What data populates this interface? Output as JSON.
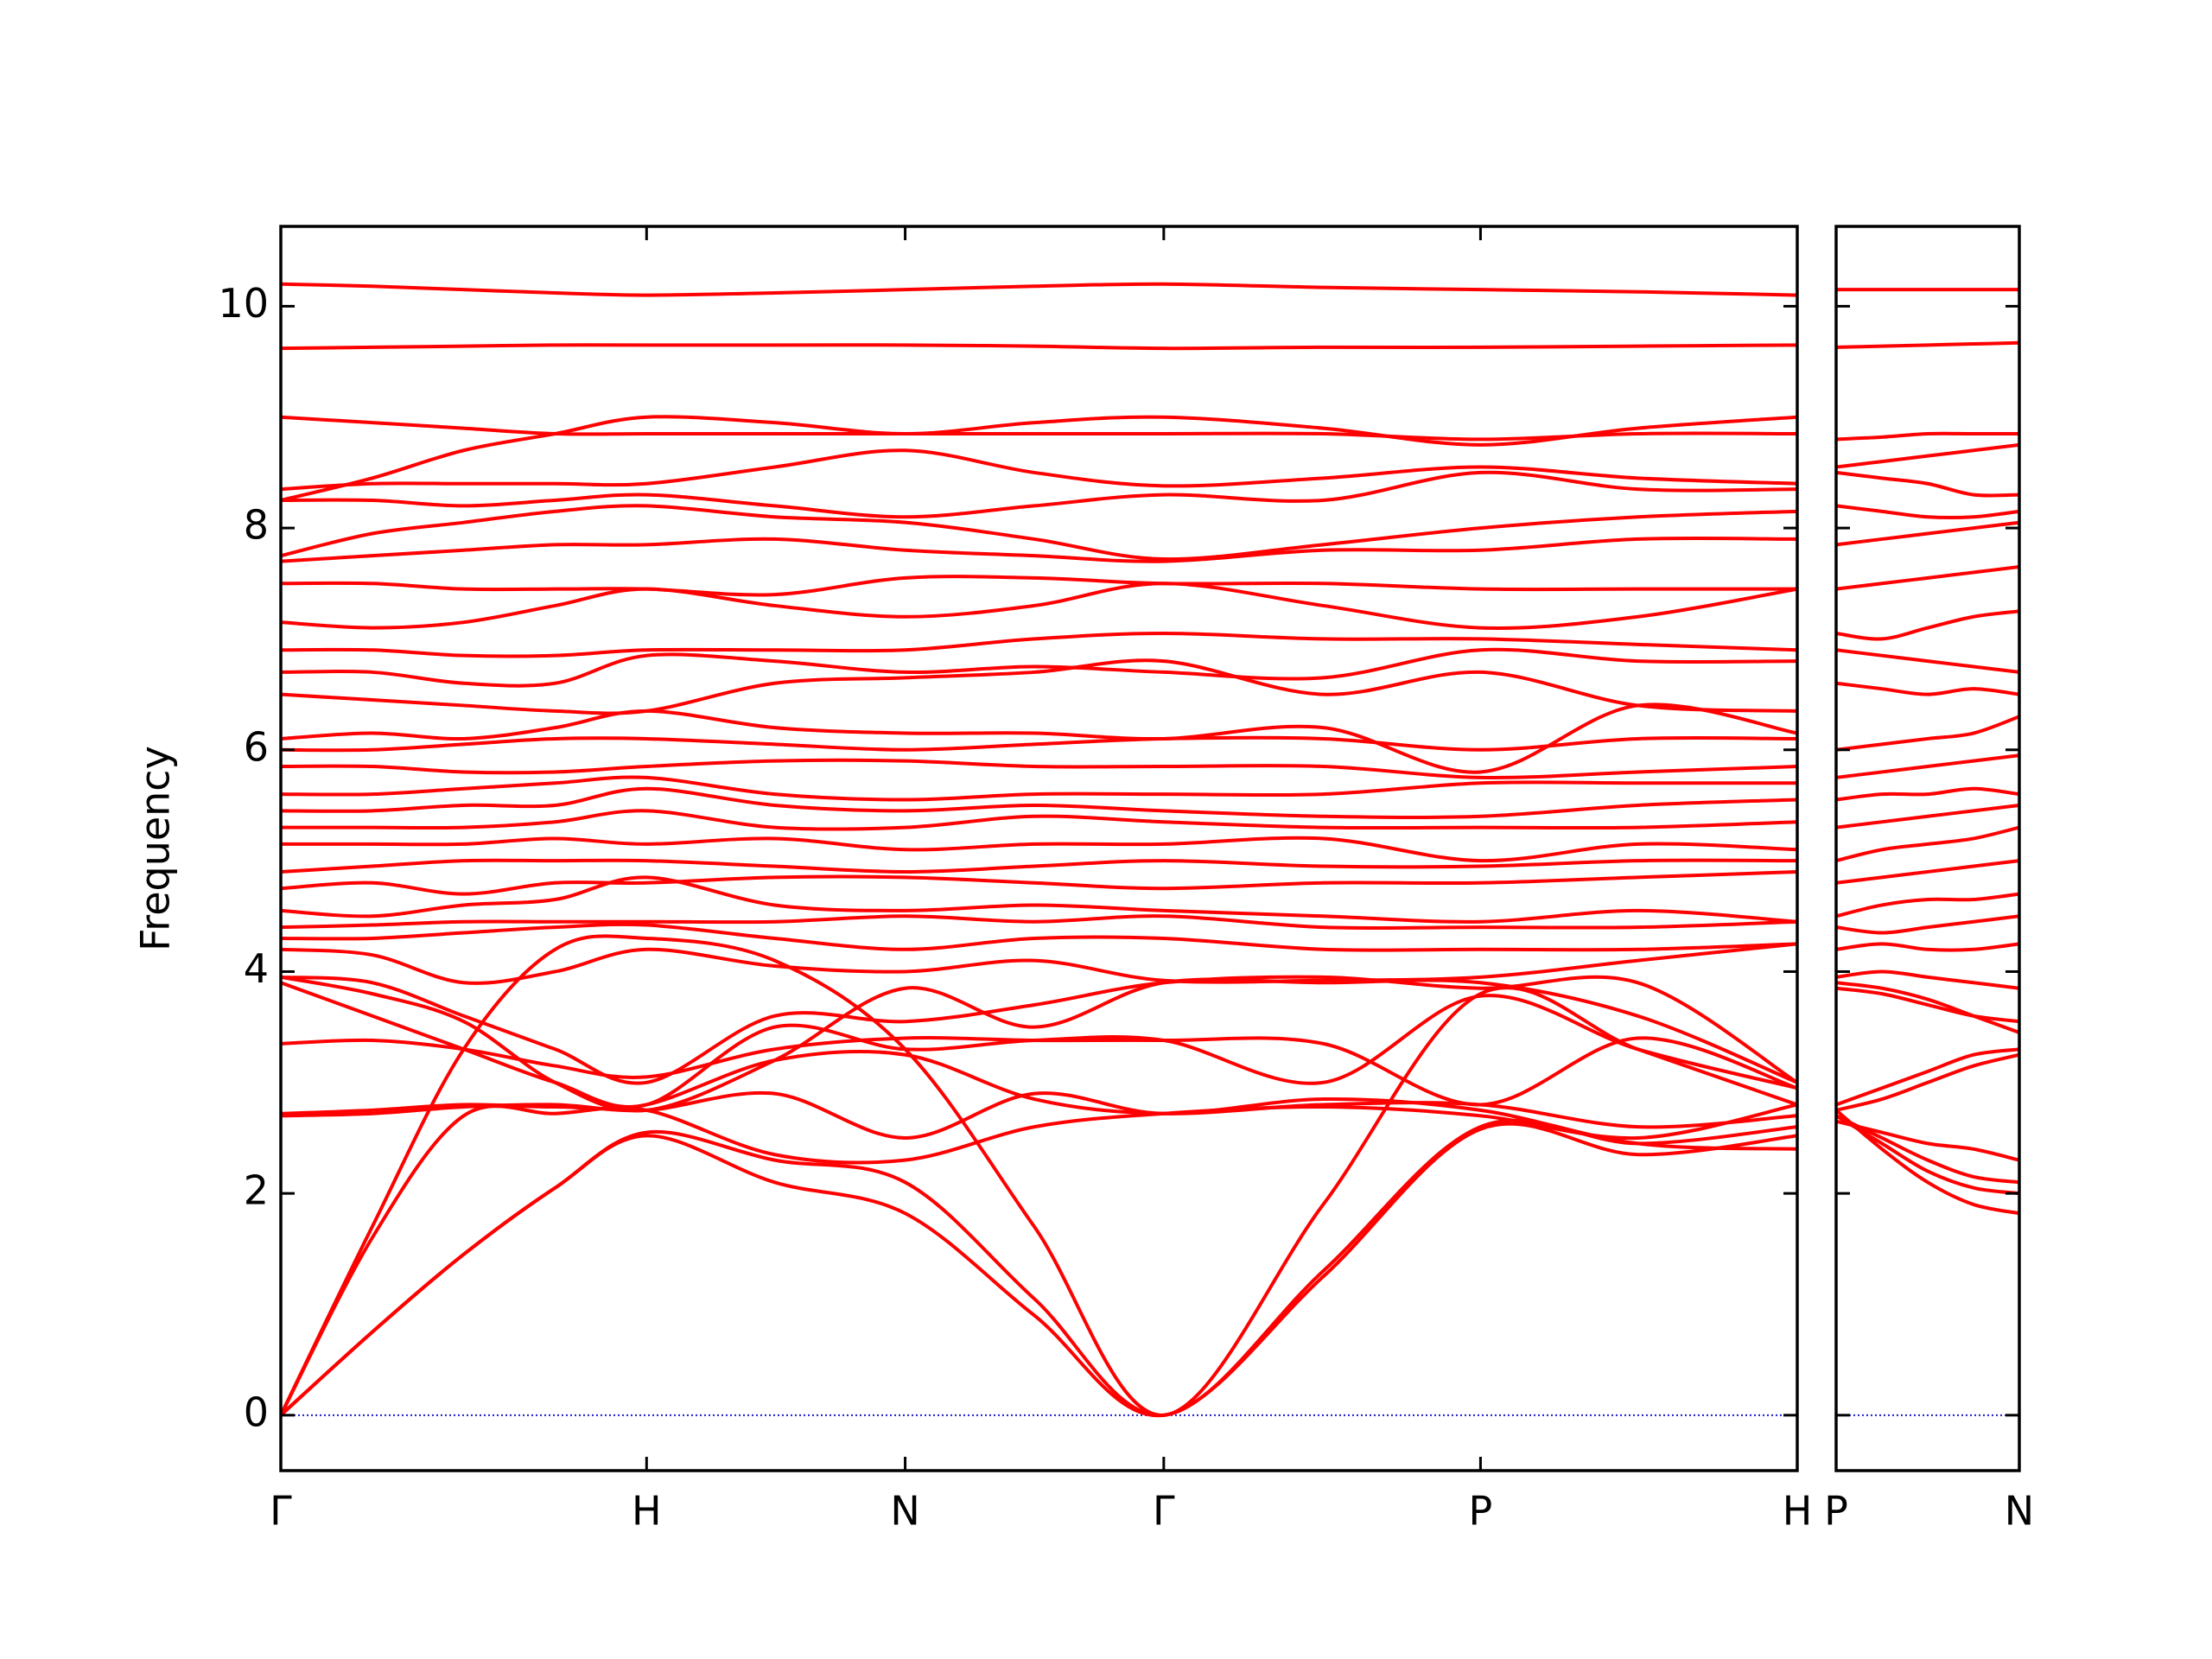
{
  "chart_data": [
    {
      "type": "line",
      "ylabel": "Frequency",
      "color": "#ff0000",
      "smooth": true,
      "hlines": [
        0
      ],
      "hline_color": "#1a1acc",
      "xlim": [
        0,
        4.146
      ],
      "ylim": [
        -0.5,
        10.72
      ],
      "yticks": [
        0,
        2,
        4,
        6,
        8,
        10
      ],
      "xticks": [
        {
          "value": 0,
          "label": "Γ"
        },
        {
          "value": 1,
          "label": "H"
        },
        {
          "value": 1.707,
          "label": "N"
        },
        {
          "value": 2.414,
          "label": "Γ"
        },
        {
          "value": 3.28,
          "label": "P"
        },
        {
          "value": 4.146,
          "label": "H"
        }
      ],
      "x": [
        0,
        0.25,
        0.5,
        0.75,
        1,
        1.35,
        1.707,
        2.06,
        2.414,
        2.85,
        3.28,
        3.71,
        4.146
      ],
      "series": [
        {
          "values": [
            0,
            0.75,
            1.45,
            2.05,
            2.52,
            2.1,
            1.82,
            0.9,
            0,
            1.25,
            2.58,
            2.35,
            2.52
          ]
        },
        {
          "values": [
            0,
            0.75,
            1.45,
            2.05,
            2.55,
            2.3,
            2.1,
            1.05,
            0,
            1.3,
            2.6,
            2.45,
            2.6
          ]
        },
        {
          "values": [
            0,
            1.6,
            2.7,
            2.72,
            2.75,
            2.35,
            2.3,
            2.6,
            2.72,
            2.78,
            2.7,
            2.5,
            2.8
          ]
        },
        {
          "values": [
            0,
            1.7,
            3.3,
            4.2,
            4.3,
            4.1,
            3.3,
            1.7,
            0,
            1.9,
            3.8,
            3.3,
            2.8
          ]
        },
        {
          "values": [
            2.7,
            2.72,
            2.78,
            2.8,
            2.75,
            2.9,
            2.5,
            2.9,
            2.72,
            2.85,
            2.75,
            2.45,
            2.4
          ]
        },
        {
          "values": [
            2.72,
            2.75,
            2.8,
            2.78,
            2.8,
            3.2,
            3.25,
            2.85,
            2.72,
            2.8,
            2.8,
            2.6,
            2.7
          ]
        },
        {
          "values": [
            3.35,
            3.38,
            3.3,
            3.15,
            3.05,
            3.3,
            3.4,
            3.38,
            3.38,
            3.35,
            2.8,
            3.4,
            2.95
          ]
        },
        {
          "values": [
            3.9,
            3.6,
            3.3,
            3.0,
            2.8,
            3.5,
            3.3,
            3.38,
            3.38,
            3.0,
            3.78,
            3.3,
            2.95
          ]
        },
        {
          "values": [
            3.95,
            3.8,
            3.55,
            3.0,
            2.75,
            3.2,
            3.85,
            3.5,
            3.9,
            3.9,
            3.9,
            3.6,
            3.0
          ]
        },
        {
          "values": [
            3.95,
            3.9,
            3.6,
            3.3,
            3.0,
            3.6,
            3.55,
            3.7,
            3.9,
            3.95,
            3.85,
            3.9,
            3.0
          ]
        },
        {
          "values": [
            4.2,
            4.15,
            3.9,
            4.0,
            4.2,
            4.05,
            4.0,
            4.1,
            3.92,
            3.92,
            3.95,
            4.1,
            4.25
          ]
        },
        {
          "values": [
            4.3,
            4.3,
            4.35,
            4.4,
            4.42,
            4.3,
            4.2,
            4.3,
            4.3,
            4.2,
            4.2,
            4.2,
            4.25
          ]
        },
        {
          "values": [
            4.4,
            4.42,
            4.45,
            4.45,
            4.45,
            4.45,
            4.5,
            4.45,
            4.5,
            4.4,
            4.4,
            4.4,
            4.45
          ]
        },
        {
          "values": [
            4.55,
            4.5,
            4.6,
            4.65,
            4.85,
            4.6,
            4.55,
            4.6,
            4.55,
            4.5,
            4.45,
            4.55,
            4.45
          ]
        },
        {
          "values": [
            4.75,
            4.8,
            4.7,
            4.8,
            4.8,
            4.85,
            4.85,
            4.8,
            4.75,
            4.8,
            4.8,
            4.85,
            4.9
          ]
        },
        {
          "values": [
            4.9,
            4.95,
            5.0,
            5.0,
            5.0,
            4.95,
            4.9,
            4.95,
            5.0,
            4.95,
            4.95,
            5.0,
            5.0
          ]
        },
        {
          "values": [
            5.15,
            5.15,
            5.15,
            5.2,
            5.15,
            5.2,
            5.1,
            5.15,
            5.15,
            5.2,
            5.0,
            5.15,
            5.1
          ]
        },
        {
          "values": [
            5.3,
            5.3,
            5.3,
            5.35,
            5.45,
            5.3,
            5.3,
            5.4,
            5.35,
            5.3,
            5.3,
            5.3,
            5.35
          ]
        },
        {
          "values": [
            5.45,
            5.45,
            5.5,
            5.5,
            5.65,
            5.5,
            5.45,
            5.5,
            5.45,
            5.4,
            5.4,
            5.5,
            5.55
          ]
        },
        {
          "values": [
            5.6,
            5.6,
            5.65,
            5.7,
            5.75,
            5.6,
            5.55,
            5.6,
            5.6,
            5.6,
            5.7,
            5.7,
            5.7
          ]
        },
        {
          "values": [
            5.85,
            5.85,
            5.8,
            5.8,
            5.85,
            5.9,
            5.9,
            5.85,
            5.85,
            5.85,
            5.75,
            5.8,
            5.85
          ]
        },
        {
          "values": [
            6.0,
            6.0,
            6.05,
            6.1,
            6.1,
            6.05,
            6.0,
            6.05,
            6.1,
            6.1,
            6.0,
            6.1,
            6.1
          ]
        },
        {
          "values": [
            6.1,
            6.15,
            6.1,
            6.2,
            6.35,
            6.2,
            6.15,
            6.15,
            6.1,
            6.2,
            5.8,
            6.4,
            6.15
          ]
        },
        {
          "values": [
            6.5,
            6.45,
            6.4,
            6.35,
            6.35,
            6.6,
            6.65,
            6.7,
            6.8,
            6.5,
            6.7,
            6.4,
            6.35
          ]
        },
        {
          "values": [
            6.7,
            6.7,
            6.6,
            6.6,
            6.85,
            6.8,
            6.7,
            6.75,
            6.7,
            6.65,
            6.9,
            6.8,
            6.8
          ]
        },
        {
          "values": [
            6.9,
            6.9,
            6.85,
            6.85,
            6.9,
            6.9,
            6.9,
            7.0,
            7.05,
            7.0,
            7.0,
            6.95,
            6.9
          ]
        },
        {
          "values": [
            7.15,
            7.1,
            7.15,
            7.3,
            7.45,
            7.3,
            7.2,
            7.3,
            7.5,
            7.3,
            7.1,
            7.2,
            7.45
          ]
        },
        {
          "values": [
            7.5,
            7.5,
            7.45,
            7.45,
            7.45,
            7.4,
            7.55,
            7.55,
            7.5,
            7.5,
            7.45,
            7.45,
            7.45
          ]
        },
        {
          "values": [
            7.7,
            7.75,
            7.8,
            7.85,
            7.85,
            7.9,
            7.8,
            7.75,
            7.7,
            7.8,
            7.8,
            7.9,
            7.9
          ]
        },
        {
          "values": [
            7.75,
            7.95,
            8.05,
            8.15,
            8.2,
            8.1,
            8.05,
            7.9,
            7.72,
            7.85,
            8.0,
            8.1,
            8.15
          ]
        },
        {
          "values": [
            8.25,
            8.25,
            8.2,
            8.25,
            8.3,
            8.2,
            8.1,
            8.2,
            8.3,
            8.25,
            8.5,
            8.35,
            8.35
          ]
        },
        {
          "values": [
            8.35,
            8.4,
            8.4,
            8.4,
            8.4,
            8.55,
            8.7,
            8.5,
            8.38,
            8.45,
            8.55,
            8.45,
            8.4
          ]
        },
        {
          "values": [
            9.0,
            8.95,
            8.9,
            8.85,
            8.85,
            8.85,
            8.85,
            8.85,
            8.85,
            8.85,
            8.8,
            8.85,
            8.85
          ]
        },
        {
          "values": [
            8.25,
            8.45,
            8.7,
            8.85,
            9.0,
            8.95,
            8.85,
            8.95,
            9.0,
            8.9,
            8.75,
            8.9,
            9.0
          ]
        },
        {
          "values": [
            9.62,
            9.63,
            9.64,
            9.65,
            9.65,
            9.65,
            9.65,
            9.64,
            9.62,
            9.63,
            9.63,
            9.64,
            9.65
          ]
        },
        {
          "values": [
            10.2,
            10.18,
            10.15,
            10.12,
            10.1,
            10.12,
            10.15,
            10.18,
            10.2,
            10.17,
            10.15,
            10.13,
            10.1
          ]
        }
      ]
    },
    {
      "type": "line",
      "color": "#ff0000",
      "smooth": true,
      "sharey": true,
      "hlines": [
        0
      ],
      "hline_color": "#1a1acc",
      "xlim": [
        4.146,
        4.646
      ],
      "xticks": [
        {
          "value": 4.146,
          "label": "P"
        },
        {
          "value": 4.646,
          "label": "N"
        }
      ],
      "x": [
        4.146,
        4.271,
        4.396,
        4.521,
        4.646
      ],
      "series": [
        {
          "values": [
            2.75,
            2.4,
            2.1,
            1.9,
            1.82
          ]
        },
        {
          "values": [
            2.7,
            2.45,
            2.2,
            2.05,
            2.0
          ]
        },
        {
          "values": [
            2.7,
            2.5,
            2.3,
            2.15,
            2.1
          ]
        },
        {
          "values": [
            2.65,
            2.55,
            2.45,
            2.4,
            2.3
          ]
        },
        {
          "values": [
            2.75,
            2.85,
            3.0,
            3.15,
            3.25
          ]
        },
        {
          "values": [
            2.8,
            2.95,
            3.1,
            3.25,
            3.3
          ]
        },
        {
          "values": [
            3.85,
            3.8,
            3.7,
            3.6,
            3.55
          ]
        },
        {
          "values": [
            3.9,
            3.85,
            3.75,
            3.6,
            3.45
          ]
        },
        {
          "values": [
            3.95,
            4.0,
            3.95,
            3.9,
            3.85
          ]
        },
        {
          "values": [
            4.2,
            4.25,
            4.2,
            4.2,
            4.25
          ]
        },
        {
          "values": [
            4.4,
            4.35,
            4.4,
            4.45,
            4.5
          ]
        },
        {
          "values": [
            4.5,
            4.6,
            4.65,
            4.65,
            4.7
          ]
        },
        {
          "values": [
            4.8,
            4.85,
            4.9,
            4.95,
            5.0
          ]
        },
        {
          "values": [
            5.0,
            5.1,
            5.15,
            5.2,
            5.3
          ]
        },
        {
          "values": [
            5.3,
            5.35,
            5.4,
            5.45,
            5.5
          ]
        },
        {
          "values": [
            5.55,
            5.6,
            5.6,
            5.65,
            5.6
          ]
        },
        {
          "values": [
            5.75,
            5.8,
            5.85,
            5.9,
            5.95
          ]
        },
        {
          "values": [
            6.0,
            6.05,
            6.1,
            6.15,
            6.3
          ]
        },
        {
          "values": [
            6.6,
            6.55,
            6.5,
            6.55,
            6.5
          ]
        },
        {
          "values": [
            6.9,
            6.85,
            6.8,
            6.75,
            6.7
          ]
        },
        {
          "values": [
            7.05,
            7.0,
            7.1,
            7.2,
            7.25
          ]
        },
        {
          "values": [
            7.45,
            7.5,
            7.55,
            7.6,
            7.65
          ]
        },
        {
          "values": [
            7.85,
            7.9,
            7.95,
            8.0,
            8.05
          ]
        },
        {
          "values": [
            8.2,
            8.15,
            8.1,
            8.1,
            8.15
          ]
        },
        {
          "values": [
            8.5,
            8.45,
            8.4,
            8.3,
            8.3
          ]
        },
        {
          "values": [
            8.55,
            8.6,
            8.65,
            8.7,
            8.75
          ]
        },
        {
          "values": [
            8.8,
            8.82,
            8.85,
            8.85,
            8.85
          ]
        },
        {
          "values": [
            9.63,
            9.64,
            9.65,
            9.66,
            9.67
          ]
        },
        {
          "values": [
            10.15,
            10.15,
            10.15,
            10.15,
            10.15
          ]
        }
      ]
    }
  ]
}
